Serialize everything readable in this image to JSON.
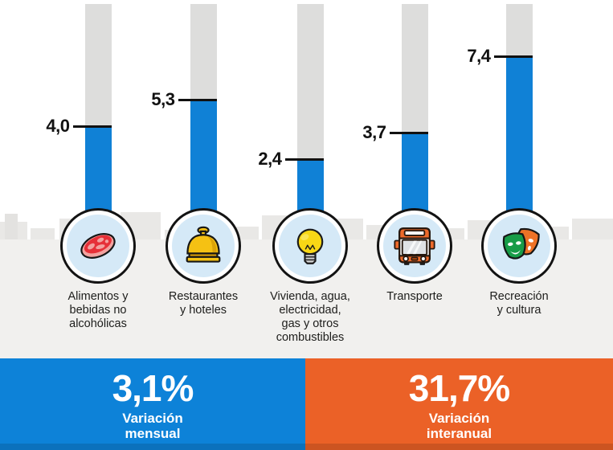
{
  "chart_data": {
    "type": "bar",
    "title": "",
    "unit": "%",
    "orientation": "vertical",
    "ylim": [
      0,
      9.9
    ],
    "categories": [
      {
        "label": "Alimentos y bebidas no alcohólicas",
        "label_lines": [
          "Alimentos y",
          "bebidas no",
          "alcohólicas"
        ],
        "value": 4.0,
        "display": "4,0",
        "icon": "steak-icon"
      },
      {
        "label": "Restaurantes y hoteles",
        "label_lines": [
          "Restaurantes",
          "y hoteles"
        ],
        "value": 5.3,
        "display": "5,3",
        "icon": "bell-icon"
      },
      {
        "label": "Vivienda, agua, electricidad, gas y otros combustibles",
        "label_lines": [
          "Vivienda, agua,",
          "electricidad,",
          "gas y otros",
          "combustibles"
        ],
        "value": 2.4,
        "display": "2,4",
        "icon": "lightbulb-icon"
      },
      {
        "label": "Transporte",
        "label_lines": [
          "Transporte"
        ],
        "value": 3.7,
        "display": "3,7",
        "icon": "bus-icon"
      },
      {
        "label": "Recreación y cultura",
        "label_lines": [
          "Recreación",
          "y cultura"
        ],
        "value": 7.4,
        "display": "7,4",
        "icon": "theater-masks-icon"
      }
    ]
  },
  "footer": {
    "monthly": {
      "value": "3,1%",
      "line1": "Variación",
      "line2": "mensual"
    },
    "yearly": {
      "value": "31,7%",
      "line1": "Variación",
      "line2": "interanual"
    }
  },
  "colors": {
    "bar_blue": "#1081d6",
    "track_gray": "#dddddc",
    "panel_blue": "#0d82d8",
    "panel_orange": "#eb6127",
    "circle_inner_blue": "#d5e9f7",
    "ground_gray": "#f1f0ee",
    "skyline_gray": "#e9e8e6",
    "skyline_gray_dark": "#e3e2e0",
    "text_dark": "#1d1d1b"
  }
}
